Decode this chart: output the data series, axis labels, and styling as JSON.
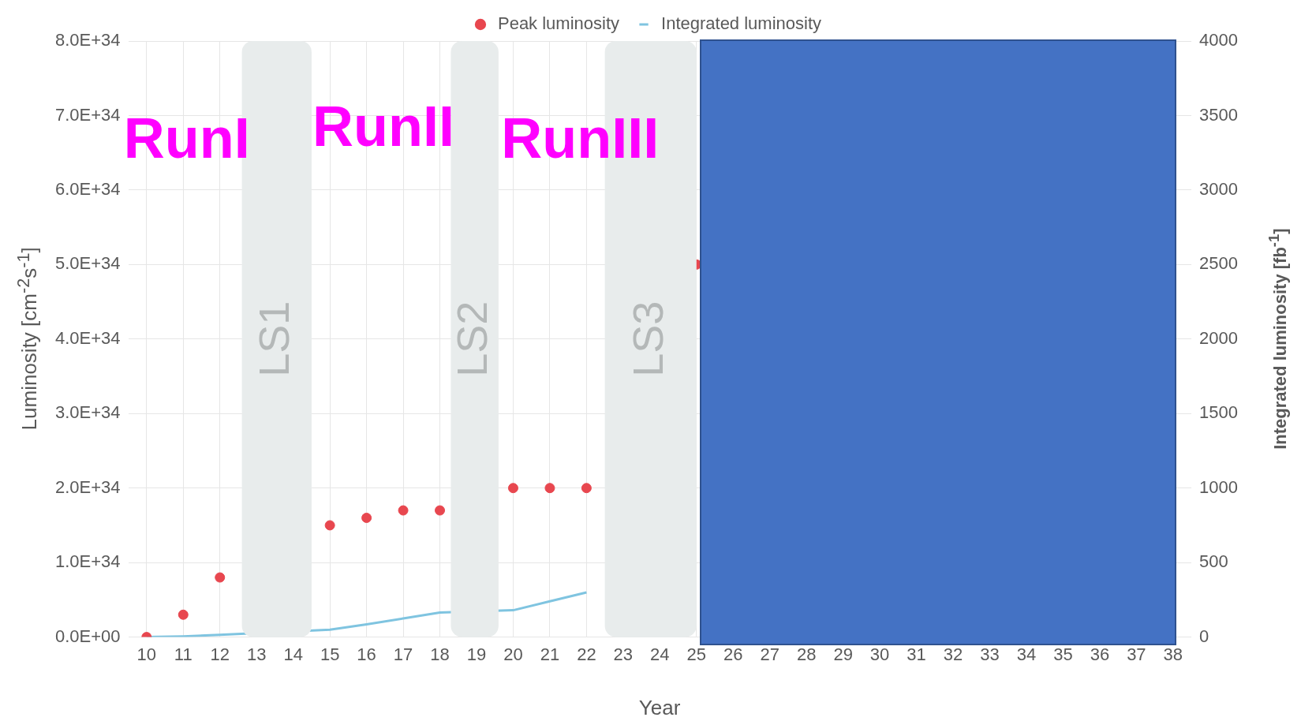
{
  "chart_data": {
    "type": "scatter",
    "xlabel": "Year",
    "ylabel": "Luminosity [cm$^{-2}$s$^{-1}$]",
    "y2label": "Integrated luminosity [fb$^{-1}$]",
    "x": [
      10,
      11,
      12,
      13,
      14,
      15,
      16,
      17,
      18,
      19,
      20,
      21,
      22,
      23,
      24,
      25
    ],
    "series": [
      {
        "name": "Peak luminosity",
        "marker": "circle",
        "color": "#e8474f",
        "values": [
          0,
          3e+33,
          8e+33,
          null,
          null,
          1.5e+34,
          1.6e+34,
          1.7e+34,
          1.7e+34,
          null,
          2e+34,
          2e+34,
          2e+34,
          null,
          null,
          5e+34
        ]
      },
      {
        "name": "Integrated luminosity",
        "type": "line",
        "marker": "none",
        "axis": "y2",
        "color": "#7fc4e0",
        "values": [
          0,
          5,
          15,
          null,
          null,
          50,
          85,
          125,
          165,
          null,
          180,
          240,
          300,
          null,
          null,
          null
        ]
      }
    ],
    "xlim": [
      9.5,
      38.5
    ],
    "xticks": [
      10,
      11,
      12,
      13,
      14,
      15,
      16,
      17,
      18,
      19,
      20,
      21,
      22,
      23,
      24,
      25,
      26,
      27,
      28,
      29,
      30,
      31,
      32,
      33,
      34,
      35,
      36,
      37,
      38
    ],
    "ylim": [
      0,
      8e+34
    ],
    "yticks": [
      {
        "value": 0,
        "label": "0.0E+00"
      },
      {
        "value": 1e+34,
        "label": "1.0E+34"
      },
      {
        "value": 2e+34,
        "label": "2.0E+34"
      },
      {
        "value": 3e+34,
        "label": "3.0E+34"
      },
      {
        "value": 4e+34,
        "label": "4.0E+34"
      },
      {
        "value": 5e+34,
        "label": "5.0E+34"
      },
      {
        "value": 6e+34,
        "label": "6.0E+34"
      },
      {
        "value": 7e+34,
        "label": "7.0E+34"
      },
      {
        "value": 8e+34,
        "label": "8.0E+34"
      }
    ],
    "y2lim": [
      0,
      4000
    ],
    "y2ticks": [
      0,
      500,
      1000,
      1500,
      2000,
      2500,
      3000,
      3500,
      4000
    ],
    "bands": [
      {
        "axis": "x",
        "from": 12.6,
        "to": 14.5,
        "label": "LS1",
        "color": "#e8ecec"
      },
      {
        "axis": "x",
        "from": 18.3,
        "to": 19.6,
        "label": "LS2",
        "color": "#e8ecec"
      },
      {
        "axis": "x",
        "from": 22.5,
        "to": 25.0,
        "label": "LS3",
        "color": "#e8ecec"
      }
    ],
    "annotations": [
      "RunI",
      "RunII",
      "RunIII"
    ],
    "grid": true,
    "legend": "top"
  }
}
